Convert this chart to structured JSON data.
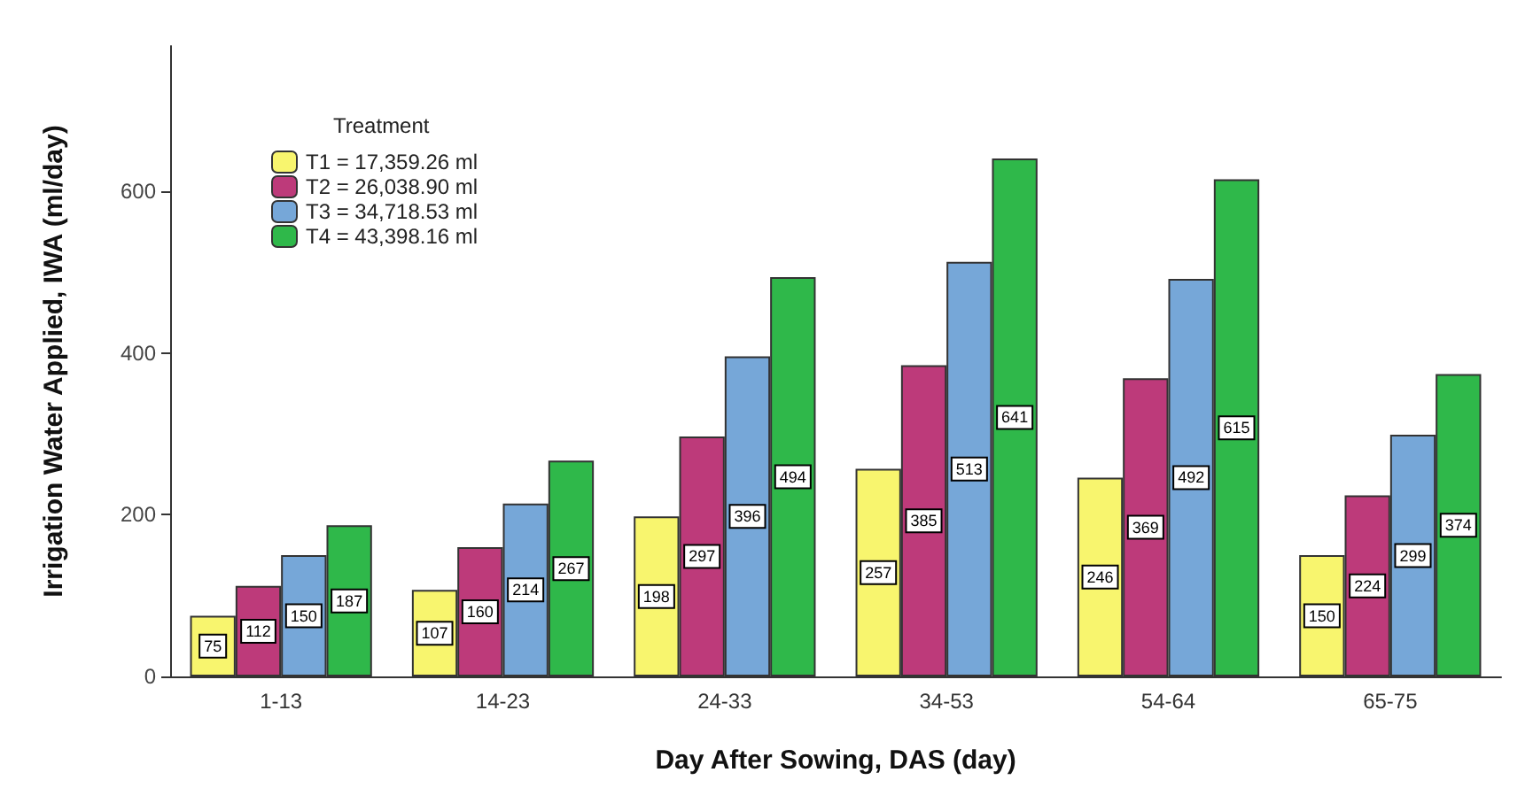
{
  "chart_data": {
    "type": "bar",
    "xlabel": "Day After Sowing, DAS (day)",
    "ylabel": "Irrigation Water Applied, IWA (ml/day)",
    "legend_title": "Treatment",
    "categories": [
      "1-13",
      "14-23",
      "24-33",
      "34-53",
      "54-64",
      "65-75"
    ],
    "series": [
      {
        "name": "T1 = 17,359.26 ml",
        "color": "#f8f56e",
        "values": [
          75,
          107,
          198,
          257,
          246,
          150
        ]
      },
      {
        "name": "T2 = 26,038.90 ml",
        "color": "#bd3a7a",
        "values": [
          112,
          160,
          297,
          385,
          369,
          224
        ]
      },
      {
        "name": "T3 = 34,718.53 ml",
        "color": "#76a7d8",
        "values": [
          150,
          214,
          396,
          513,
          492,
          299
        ]
      },
      {
        "name": "T4 = 43,398.16 ml",
        "color": "#2fb84a",
        "values": [
          187,
          267,
          494,
          641,
          615,
          374
        ]
      }
    ],
    "ylim": [
      0,
      780
    ],
    "yticks": [
      0,
      200,
      400,
      600
    ],
    "grid": false,
    "legend": "top left",
    "data_labels": true
  }
}
